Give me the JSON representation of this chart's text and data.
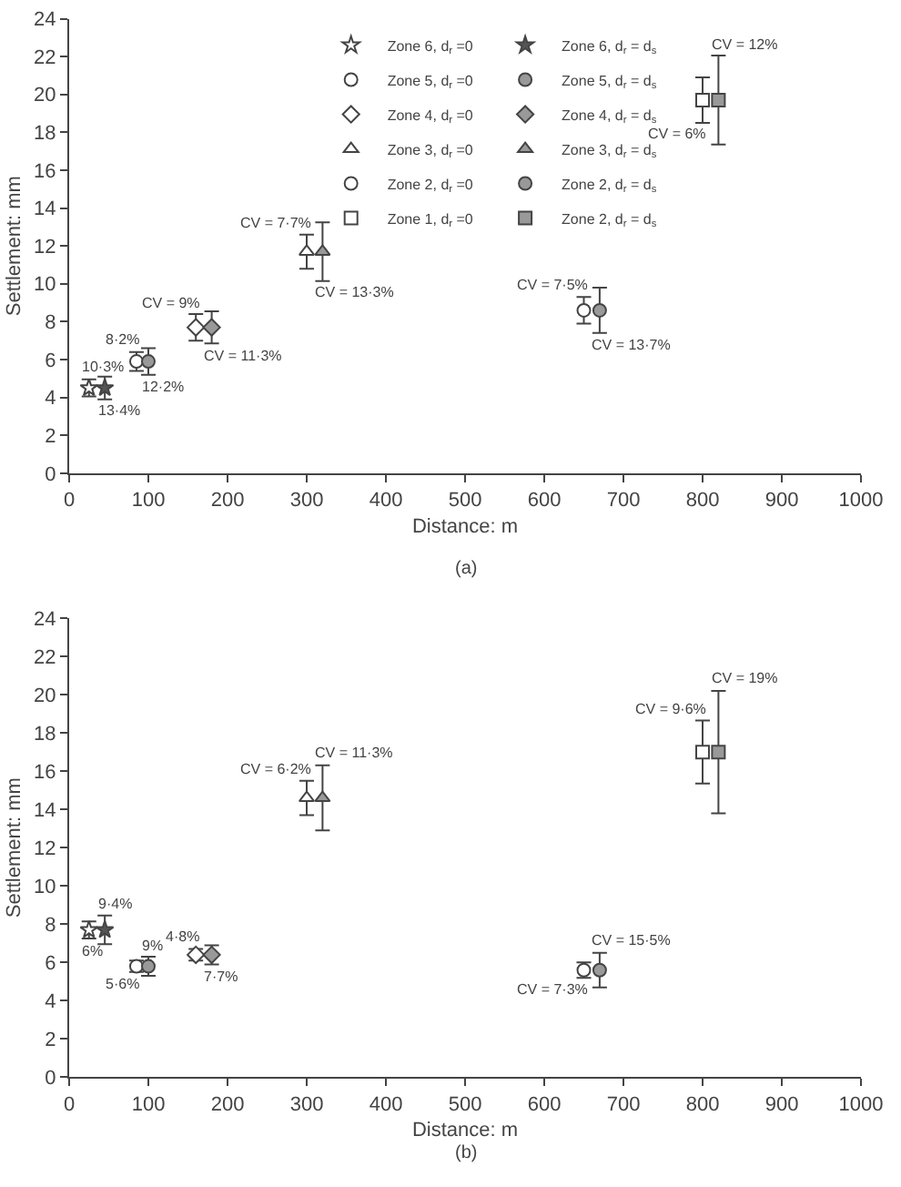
{
  "chart_data": [
    {
      "type": "scatter",
      "xlabel": "Distance: m",
      "ylabel": "Settlement: mm",
      "xlim": [
        0,
        1000
      ],
      "xticks": [
        0,
        100,
        200,
        300,
        400,
        500,
        600,
        700,
        800,
        900,
        1000
      ],
      "ylim": [
        0,
        24
      ],
      "yticks": [
        0,
        2,
        4,
        6,
        8,
        10,
        12,
        14,
        16,
        18,
        20,
        22,
        24
      ],
      "legend": "top",
      "series": [
        {
          "name": "Zone 6, d$_{r}$ =0",
          "color": "#ffffff",
          "marker": "star",
          "x": [
            25
          ],
          "values": [
            4.5
          ],
          "errors": [
            0.45
          ]
        },
        {
          "name": "Zone 6, d$_{r}$ = d$_{s}$",
          "color": "#555555",
          "marker": "star",
          "x": [
            45
          ],
          "values": [
            4.5
          ],
          "errors": [
            0.6
          ]
        },
        {
          "name": "Zone 5, d$_{r}$ =0",
          "color": "#ffffff",
          "marker": "circle",
          "x": [
            85
          ],
          "values": [
            5.9
          ],
          "errors": [
            0.5
          ]
        },
        {
          "name": "Zone 5, d$_{r}$ = d$_{s}$",
          "color": "#999999",
          "marker": "circle",
          "x": [
            100
          ],
          "values": [
            5.9
          ],
          "errors": [
            0.7
          ]
        },
        {
          "name": "Zone 4, d$_{r}$ =0",
          "color": "#ffffff",
          "marker": "diamond",
          "x": [
            160
          ],
          "values": [
            7.7
          ],
          "errors": [
            0.7
          ]
        },
        {
          "name": "Zone 4, d$_{r}$ = d$_{s}$",
          "color": "#999999",
          "marker": "diamond",
          "x": [
            180
          ],
          "values": [
            7.7
          ],
          "errors": [
            0.85
          ]
        },
        {
          "name": "Zone 3, d$_{r}$ =0",
          "color": "#ffffff",
          "marker": "triangle",
          "x": [
            300
          ],
          "values": [
            11.7
          ],
          "errors": [
            0.9
          ]
        },
        {
          "name": "Zone 3, d$_{r}$ = d$_{s}$",
          "color": "#999999",
          "marker": "triangle",
          "x": [
            320
          ],
          "values": [
            11.7
          ],
          "errors": [
            1.55
          ]
        },
        {
          "name": "Zone 2, d$_{r}$ =0",
          "color": "#ffffff",
          "marker": "circle",
          "x": [
            650
          ],
          "values": [
            8.6
          ],
          "errors": [
            0.7
          ]
        },
        {
          "name": "Zone 2, d$_{r}$ = d$_{s}$",
          "color": "#999999",
          "marker": "circle",
          "x": [
            670
          ],
          "values": [
            8.6
          ],
          "errors": [
            1.2
          ]
        },
        {
          "name": "Zone 1, d$_{r}$ =0",
          "color": "#ffffff",
          "marker": "square",
          "x": [
            800
          ],
          "values": [
            19.7
          ],
          "errors": [
            1.2
          ]
        },
        {
          "name": "Zone 2, d$_{r}$ = d$_{s}$",
          "color": "#999999",
          "marker": "square",
          "x": [
            820
          ],
          "values": [
            19.7
          ],
          "errors": [
            2.35
          ]
        }
      ],
      "annotations": [
        {
          "text": "10·3%",
          "x": 25,
          "y": 4.95
        },
        {
          "text": "13·4%",
          "x": 45,
          "y": 3.9
        },
        {
          "text": "8·2%",
          "x": 85,
          "y": 6.4
        },
        {
          "text": "12·2%",
          "x": 100,
          "y": 5.2
        },
        {
          "text": "CV = 9%",
          "x": 160,
          "y": 8.4
        },
        {
          "text": "CV = 11·3%",
          "x": 180,
          "y": 6.85
        },
        {
          "text": "CV = 7·7%",
          "x": 300,
          "y": 12.6
        },
        {
          "text": "CV = 13·3%",
          "x": 320,
          "y": 10.15
        },
        {
          "text": "CV = 7·5%",
          "x": 650,
          "y": 9.3
        },
        {
          "text": "CV = 13·7%",
          "x": 670,
          "y": 7.4
        },
        {
          "text": "CV = 6%",
          "x": 800,
          "y": 18.5
        },
        {
          "text": "CV = 12%",
          "x": 820,
          "y": 22.05
        },
        "(a)"
      ]
    },
    {
      "type": "scatter",
      "xlabel": "Distance: m",
      "ylabel": "Settlement: mm",
      "xlim": [
        0,
        1000
      ],
      "xticks": [
        0,
        100,
        200,
        300,
        400,
        500,
        600,
        700,
        800,
        900,
        1000
      ],
      "ylim": [
        0,
        24
      ],
      "yticks": [
        0,
        2,
        4,
        6,
        8,
        10,
        12,
        14,
        16,
        18,
        20,
        22,
        24
      ],
      "series": [
        {
          "color": "#ffffff",
          "marker": "star",
          "x": [
            25
          ],
          "values": [
            7.7
          ],
          "errors": [
            0.45
          ]
        },
        {
          "color": "#555555",
          "marker": "star",
          "x": [
            45
          ],
          "values": [
            7.7
          ],
          "errors": [
            0.75
          ]
        },
        {
          "color": "#ffffff",
          "marker": "circle",
          "x": [
            85
          ],
          "values": [
            5.8
          ],
          "errors": [
            0.3
          ]
        },
        {
          "color": "#999999",
          "marker": "circle",
          "x": [
            100
          ],
          "values": [
            5.8
          ],
          "errors": [
            0.5
          ]
        },
        {
          "color": "#ffffff",
          "marker": "diamond",
          "x": [
            160
          ],
          "values": [
            6.4
          ],
          "errors": [
            0.3
          ]
        },
        {
          "color": "#999999",
          "marker": "diamond",
          "x": [
            180
          ],
          "values": [
            6.4
          ],
          "errors": [
            0.5
          ]
        },
        {
          "color": "#ffffff",
          "marker": "triangle",
          "x": [
            300
          ],
          "values": [
            14.6
          ],
          "errors": [
            0.9
          ]
        },
        {
          "color": "#999999",
          "marker": "triangle",
          "x": [
            320
          ],
          "values": [
            14.6
          ],
          "errors": [
            1.7
          ]
        },
        {
          "color": "#ffffff",
          "marker": "circle",
          "x": [
            650
          ],
          "values": [
            5.6
          ],
          "errors": [
            0.4
          ]
        },
        {
          "color": "#999999",
          "marker": "circle",
          "x": [
            670
          ],
          "values": [
            5.6
          ],
          "errors": [
            0.9
          ]
        },
        {
          "color": "#ffffff",
          "marker": "square",
          "x": [
            800
          ],
          "values": [
            17.0
          ],
          "errors": [
            1.65
          ]
        },
        {
          "color": "#999999",
          "marker": "square",
          "x": [
            820
          ],
          "values": [
            17.0
          ],
          "errors": [
            3.2
          ]
        }
      ],
      "annotations": [
        {
          "text": "6%",
          "x": 25,
          "y": 7.25
        },
        {
          "text": "9·4%",
          "x": 45,
          "y": 8.45
        },
        {
          "text": "5·6%",
          "x": 85,
          "y": 5.5
        },
        {
          "text": "9%",
          "x": 100,
          "y": 6.3
        },
        {
          "text": "4·8%",
          "x": 160,
          "y": 6.7
        },
        {
          "text": "7·7%",
          "x": 180,
          "y": 5.9
        },
        {
          "text": "CV = 6·2%",
          "x": 300,
          "y": 15.5
        },
        {
          "text": "CV = 11·3%",
          "x": 320,
          "y": 16.3
        },
        {
          "text": "CV = 7·3%",
          "x": 650,
          "y": 5.2
        },
        {
          "text": "CV = 15·5%",
          "x": 670,
          "y": 6.5
        },
        {
          "text": "CV = 9·6%",
          "x": 800,
          "y": 18.65
        },
        {
          "text": "CV = 19%",
          "x": 820,
          "y": 20.2
        },
        "(b)"
      ]
    }
  ]
}
